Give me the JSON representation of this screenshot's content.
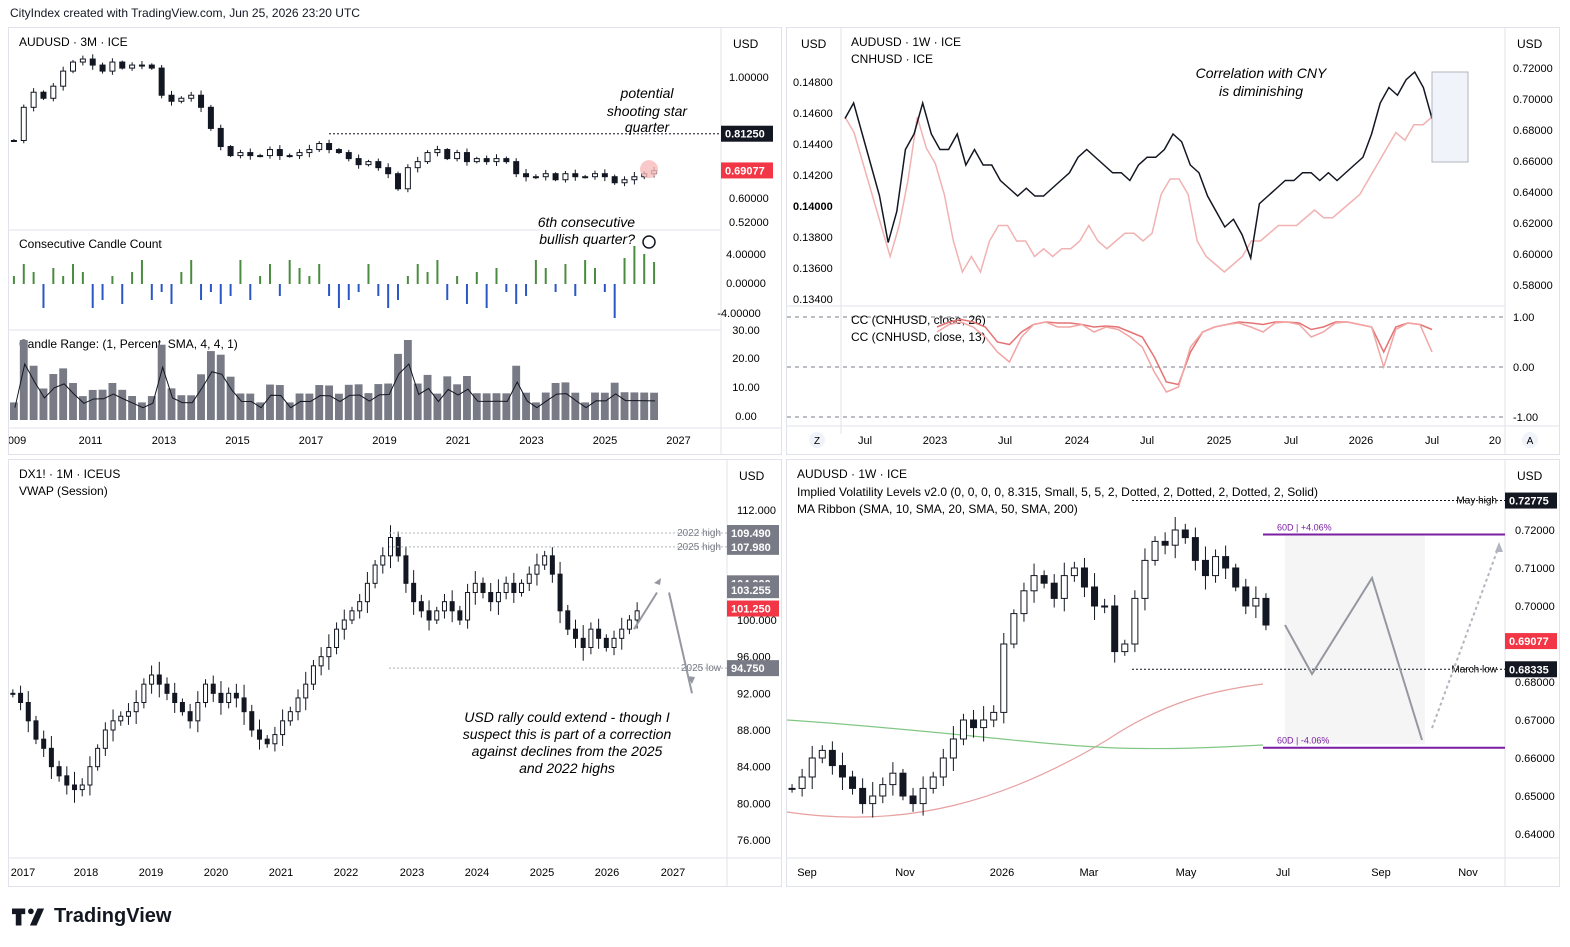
{
  "header": {
    "text": "CityIndex created with TradingView.com, Jun 25, 2026 23:20 UTC"
  },
  "brand": {
    "name": "TradingView"
  },
  "colors": {
    "up": "#ffffff",
    "down": "#131722",
    "green": "#4a8c3f",
    "blue": "#2a56c6",
    "red": "#f23645",
    "pink": "#e57373",
    "purple": "#7b1fa2",
    "grey": "#787b86"
  },
  "chart_data": [
    {
      "id": "tl",
      "type": "candlestick",
      "symbol": "AUDUSD · 3M · ICE",
      "currency": "USD",
      "y_ticks": [
        "1.00000",
        "0.80000",
        "0.60000",
        "0.52000"
      ],
      "price_labels": [
        {
          "text": "0.81250",
          "value": 0.8125,
          "color": "#131722"
        },
        {
          "text": "0.69077",
          "value": 0.69077,
          "color": "#f23645"
        }
      ],
      "ylim": [
        0.5,
        1.08
      ],
      "annotations": [
        "potential",
        "shooting star",
        "quarter",
        "6th consecutive",
        "bullish quarter?"
      ],
      "close_series": [
        0.79,
        0.9,
        0.95,
        0.93,
        0.97,
        1.02,
        1.05,
        1.06,
        1.04,
        1.02,
        1.05,
        1.03,
        1.04,
        1.04,
        1.03,
        0.94,
        0.92,
        0.93,
        0.94,
        0.9,
        0.83,
        0.77,
        0.74,
        0.75,
        0.74,
        0.74,
        0.76,
        0.74,
        0.74,
        0.75,
        0.76,
        0.78,
        0.76,
        0.75,
        0.73,
        0.71,
        0.72,
        0.7,
        0.68,
        0.63,
        0.7,
        0.72,
        0.75,
        0.76,
        0.73,
        0.75,
        0.72,
        0.73,
        0.72,
        0.73,
        0.72,
        0.68,
        0.67,
        0.67,
        0.68,
        0.66,
        0.68,
        0.67,
        0.67,
        0.68,
        0.67,
        0.65,
        0.66,
        0.67,
        0.68,
        0.69
      ],
      "sub_panels": [
        {
          "title": "Consecutive Candle Count",
          "y_ticks": [
            "4.00000",
            "0.00000",
            "-4.00000"
          ]
        },
        {
          "title": "Candle Range:  (1, Percent, SMA, 4, 4, 1)",
          "y_ticks": [
            "30.00",
            "20.00",
            "10.00",
            "0.00"
          ]
        }
      ],
      "x_ticks": [
        "009",
        "2011",
        "2013",
        "2015",
        "2017",
        "2019",
        "2021",
        "2023",
        "2025",
        "2027"
      ]
    },
    {
      "id": "tr",
      "type": "line",
      "symbol": "AUDUSD · 1W · ICE",
      "symbol2": "CNHUSD · ICE",
      "currency": "USD",
      "annotations": [
        "Correlation with CNY",
        "is diminishing"
      ],
      "y_ticks_left": [
        "0.14800",
        "0.14600",
        "0.14400",
        "0.14200",
        "0.14000",
        "0.13800",
        "0.13600",
        "0.13400"
      ],
      "y_ticks_right": [
        "0.72000",
        "0.70000",
        "0.68000",
        "0.66000",
        "0.64000",
        "0.62000",
        "0.60000",
        "0.58000"
      ],
      "audusd_series": [
        0.69,
        0.7,
        0.68,
        0.66,
        0.64,
        0.61,
        0.63,
        0.67,
        0.68,
        0.7,
        0.68,
        0.67,
        0.67,
        0.68,
        0.66,
        0.67,
        0.66,
        0.66,
        0.65,
        0.645,
        0.64,
        0.645,
        0.64,
        0.64,
        0.645,
        0.65,
        0.655,
        0.665,
        0.67,
        0.665,
        0.66,
        0.655,
        0.655,
        0.65,
        0.66,
        0.665,
        0.665,
        0.67,
        0.68,
        0.675,
        0.66,
        0.655,
        0.64,
        0.63,
        0.62,
        0.625,
        0.615,
        0.6,
        0.635,
        0.64,
        0.645,
        0.65,
        0.65,
        0.655,
        0.655,
        0.65,
        0.655,
        0.65,
        0.655,
        0.66,
        0.665,
        0.68,
        0.7,
        0.71,
        0.705,
        0.715,
        0.72,
        0.71,
        0.69
      ],
      "cnhusd_series": [
        0.146,
        0.145,
        0.143,
        0.141,
        0.139,
        0.137,
        0.139,
        0.142,
        0.146,
        0.144,
        0.143,
        0.141,
        0.138,
        0.136,
        0.137,
        0.136,
        0.138,
        0.139,
        0.139,
        0.138,
        0.138,
        0.137,
        0.1375,
        0.137,
        0.1375,
        0.1375,
        0.138,
        0.139,
        0.138,
        0.1375,
        0.138,
        0.1385,
        0.1385,
        0.138,
        0.1385,
        0.141,
        0.142,
        0.142,
        0.141,
        0.138,
        0.137,
        0.1365,
        0.136,
        0.1365,
        0.137,
        0.138,
        0.138,
        0.1385,
        0.139,
        0.139,
        0.139,
        0.1395,
        0.14,
        0.1395,
        0.1395,
        0.14,
        0.1405,
        0.141,
        0.142,
        0.143,
        0.144,
        0.145,
        0.1445,
        0.1455,
        0.1455,
        0.146
      ],
      "sub_panel": {
        "labels": [
          "CC (CNHUSD, close, 26)",
          "CC (CNHUSD, close, 13)"
        ],
        "y_ticks": [
          "1.00",
          "0.00",
          "-1.00"
        ],
        "cc26": [
          0.8,
          0.9,
          0.95,
          0.9,
          0.8,
          0.5,
          0.45,
          0.7,
          0.85,
          0.9,
          0.88,
          0.88,
          0.85,
          0.8,
          0.82,
          0.8,
          0.7,
          0.6,
          0.2,
          -0.3,
          -0.35,
          0.3,
          0.7,
          0.8,
          0.85,
          0.9,
          0.88,
          0.85,
          0.9,
          0.9,
          0.88,
          0.75,
          0.8,
          0.9,
          0.9,
          0.85,
          0.8,
          0.3,
          0.8,
          0.88,
          0.85,
          0.75
        ],
        "cc13": [
          0.7,
          0.85,
          0.9,
          0.8,
          0.6,
          0.3,
          0.1,
          0.6,
          0.85,
          0.9,
          0.8,
          0.8,
          0.85,
          0.7,
          0.8,
          0.75,
          0.6,
          0.4,
          -0.1,
          -0.5,
          -0.4,
          0.4,
          0.7,
          0.8,
          0.85,
          0.88,
          0.8,
          0.7,
          0.88,
          0.9,
          0.85,
          0.6,
          0.7,
          0.88,
          0.9,
          0.85,
          0.8,
          0.0,
          0.75,
          0.88,
          0.85,
          0.3
        ]
      },
      "x_ticks": [
        "Jul",
        "2023",
        "Jul",
        "2024",
        "Jul",
        "2025",
        "Jul",
        "2026",
        "Jul",
        "20"
      ],
      "corner_labels": [
        "Z",
        "A"
      ]
    },
    {
      "id": "bl",
      "type": "candlestick",
      "symbol": "DX1! · 1M · ICEUS",
      "indicator": "VWAP (Session)",
      "currency": "USD",
      "y_ticks": [
        "112.000",
        "100.000",
        "96.000",
        "92.000",
        "88.000",
        "84.000",
        "80.000",
        "76.000"
      ],
      "ylim": [
        74,
        114
      ],
      "price_labels": [
        {
          "text": "109.490",
          "value": 109.49,
          "color": "#787b86",
          "line_label": "2022 high"
        },
        {
          "text": "107.980",
          "value": 107.98,
          "color": "#787b86",
          "line_label": "2025 high"
        },
        {
          "text": "104.000",
          "value": 104.0,
          "color": "#787b86",
          "line_label": ""
        },
        {
          "text": "103.255",
          "value": 103.255,
          "color": "#787b86",
          "line_label": ""
        },
        {
          "text": "101.250",
          "value": 101.25,
          "color": "#f23645",
          "line_label": ""
        },
        {
          "text": "94.750",
          "value": 94.75,
          "color": "#787b86",
          "line_label": "2025 low"
        }
      ],
      "annotation": [
        "USD rally could extend - though I",
        "suspect this is part of a correction",
        "against declines from the 2025",
        "and 2022 highs"
      ],
      "close_series": [
        92,
        91,
        89,
        87,
        86,
        84,
        83,
        82,
        81.5,
        82,
        84,
        86,
        88,
        89,
        89.5,
        90,
        91,
        93,
        94,
        93,
        92,
        91,
        90,
        89,
        91,
        93,
        92,
        91,
        92,
        91.5,
        90,
        88,
        87,
        86.5,
        87.5,
        89,
        90,
        91.5,
        93,
        95,
        96,
        97,
        99,
        100,
        101,
        102,
        104,
        106,
        107,
        109,
        107,
        104,
        102,
        101,
        100,
        101,
        102,
        101,
        100,
        103,
        104,
        103,
        102,
        103,
        104,
        103,
        104,
        105,
        106,
        107,
        105,
        101,
        99,
        98,
        97,
        99,
        98,
        97,
        98,
        99,
        100,
        101
      ],
      "x_ticks": [
        "2017",
        "2018",
        "2019",
        "2020",
        "2021",
        "2022",
        "2023",
        "2024",
        "2025",
        "2026",
        "2027"
      ]
    },
    {
      "id": "br",
      "type": "candlestick",
      "symbol": "AUDUSD · 1W · ICE",
      "indicators": [
        "Implied Volatility Levels v2.0 (0, 0, 0, 0, 8.315, Small, 5, 5, 2, Dotted, 2, Dotted, 2, Dotted, 2, Solid)",
        "MA Ribbon (SMA, 10, SMA, 20, SMA, 50, SMA, 200)"
      ],
      "currency": "USD",
      "y_ticks": [
        "0.72000",
        "0.71000",
        "0.70000",
        "0.68000",
        "0.67000",
        "0.66000",
        "0.65000",
        "0.64000"
      ],
      "ylim": [
        0.635,
        0.73
      ],
      "price_labels": [
        {
          "text": "0.72775",
          "value": 0.72775,
          "color": "#131722",
          "line_label": "May high"
        },
        {
          "text": "0.69077",
          "value": 0.69077,
          "color": "#f23645",
          "line_label": ""
        },
        {
          "text": "0.68335",
          "value": 0.68335,
          "color": "#131722",
          "line_label": "March low"
        }
      ],
      "iv_labels": [
        "60D | +4.06%",
        "60D | -4.06%"
      ],
      "iv_levels": [
        0.7188,
        0.6627
      ],
      "close_series": [
        0.652,
        0.655,
        0.66,
        0.662,
        0.658,
        0.655,
        0.652,
        0.648,
        0.65,
        0.653,
        0.656,
        0.65,
        0.648,
        0.652,
        0.655,
        0.66,
        0.665,
        0.67,
        0.668,
        0.67,
        0.672,
        0.69,
        0.698,
        0.704,
        0.708,
        0.706,
        0.702,
        0.708,
        0.71,
        0.705,
        0.7,
        0.7,
        0.688,
        0.69,
        0.702,
        0.712,
        0.717,
        0.716,
        0.72,
        0.718,
        0.712,
        0.708,
        0.713,
        0.71,
        0.705,
        0.7,
        0.702,
        0.695
      ],
      "x_ticks": [
        "Sep",
        "Nov",
        "2026",
        "Mar",
        "May",
        "Jul",
        "Sep",
        "Nov"
      ]
    }
  ]
}
